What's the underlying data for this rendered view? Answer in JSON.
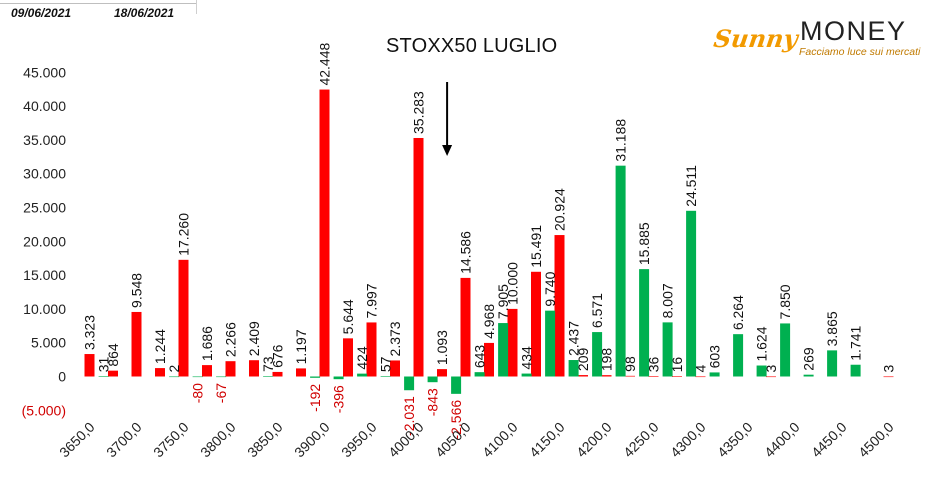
{
  "header": {
    "date_from": "09/06/2021",
    "date_to": "18/06/2021"
  },
  "logo": {
    "brand_a": "Sunny",
    "brand_b": "MONEY",
    "tagline": "Facciamo luce sui mercati"
  },
  "colors": {
    "call": "#ff0000",
    "put": "#00b050",
    "negative_label": "#d00000"
  },
  "chart_data": {
    "type": "bar",
    "title": "STOXX50 LUGLIO",
    "xlabel": "",
    "ylabel": "",
    "ylim": [
      -5000,
      45000
    ],
    "y_ticks": [
      45000,
      40000,
      35000,
      30000,
      25000,
      20000,
      15000,
      10000,
      5000,
      0,
      -5000
    ],
    "y_tick_labels": [
      "45.000",
      "40.000",
      "35.000",
      "30.000",
      "25.000",
      "20.000",
      "15.000",
      "10.000",
      "5.000",
      "0",
      "(5.000)"
    ],
    "categories": [
      "3650,0",
      "3700,0",
      "3750,0",
      "3800,0",
      "3850,0",
      "3900,0",
      "3950,0",
      "4000,0",
      "4050,0",
      "4100,0",
      "4150,0",
      "4200,0",
      "4250,0",
      "4300,0",
      "4350,0",
      "4400,0",
      "4450,0",
      "4500,0"
    ],
    "category_step": 25,
    "annotation": {
      "type": "arrow-down",
      "strike": 4040
    },
    "series": [
      {
        "values": [
          {
            "strike": 3650,
            "value": 3323,
            "label": "3.323"
          },
          {
            "strike": 3675,
            "value": 864,
            "label": "864"
          },
          {
            "strike": 3700,
            "value": 9548,
            "label": "9.548"
          },
          {
            "strike": 3725,
            "value": 1244,
            "label": "1.244"
          },
          {
            "strike": 3750,
            "value": 17260,
            "label": "17.260"
          },
          {
            "strike": 3775,
            "value": 1686,
            "label": "1.686"
          },
          {
            "strike": 3800,
            "value": 2266,
            "label": "2.266"
          },
          {
            "strike": 3825,
            "value": 2409,
            "label": "2.409"
          },
          {
            "strike": 3850,
            "value": 676,
            "label": "676"
          },
          {
            "strike": 3875,
            "value": 1197,
            "label": "1.197"
          },
          {
            "strike": 3900,
            "value": 42448,
            "label": "42.448"
          },
          {
            "strike": 3925,
            "value": 5644,
            "label": "5.644"
          },
          {
            "strike": 3950,
            "value": 7997,
            "label": "7.997"
          },
          {
            "strike": 3975,
            "value": 2373,
            "label": "2.373"
          },
          {
            "strike": 4000,
            "value": 35283,
            "label": "35.283"
          },
          {
            "strike": 4025,
            "value": 1093,
            "label": "1.093"
          },
          {
            "strike": 4050,
            "value": 14586,
            "label": "14.586"
          },
          {
            "strike": 4075,
            "value": 4968,
            "label": "4.968"
          },
          {
            "strike": 4100,
            "value": 10000,
            "label": "10.000"
          },
          {
            "strike": 4125,
            "value": 15491,
            "label": "15.491"
          },
          {
            "strike": 4150,
            "value": 20924,
            "label": "20.924"
          },
          {
            "strike": 4175,
            "value": 209,
            "label": "209"
          },
          {
            "strike": 4200,
            "value": 198,
            "label": "198"
          },
          {
            "strike": 4225,
            "value": 98,
            "label": "98"
          },
          {
            "strike": 4250,
            "value": 36,
            "label": "36"
          },
          {
            "strike": 4275,
            "value": 16,
            "label": "16"
          },
          {
            "strike": 4300,
            "value": 4,
            "label": "4"
          },
          {
            "strike": 4375,
            "value": 3,
            "label": "3"
          },
          {
            "strike": 4500,
            "value": 3,
            "label": "3"
          }
        ]
      },
      {
        "values": [
          {
            "strike": 3665,
            "value": 31,
            "label": "31"
          },
          {
            "strike": 3740,
            "value": 2,
            "label": "2"
          },
          {
            "strike": 3765,
            "value": -80,
            "label": "-80"
          },
          {
            "strike": 3790,
            "value": -67,
            "label": "-67"
          },
          {
            "strike": 3840,
            "value": 73,
            "label": "73"
          },
          {
            "strike": 3890,
            "value": -192,
            "label": "-192"
          },
          {
            "strike": 3915,
            "value": -396,
            "label": "-396"
          },
          {
            "strike": 3940,
            "value": 424,
            "label": "424"
          },
          {
            "strike": 3965,
            "value": 57,
            "label": "57"
          },
          {
            "strike": 3990,
            "value": -2031,
            "label": "-2.031"
          },
          {
            "strike": 4015,
            "value": -843,
            "label": "-843"
          },
          {
            "strike": 4040,
            "value": -2566,
            "label": "-2.566"
          },
          {
            "strike": 4065,
            "value": 643,
            "label": "643"
          },
          {
            "strike": 4090,
            "value": 7905,
            "label": "7.905"
          },
          {
            "strike": 4115,
            "value": 434,
            "label": "434"
          },
          {
            "strike": 4140,
            "value": 9740,
            "label": "9.740"
          },
          {
            "strike": 4165,
            "value": 2437,
            "label": "2.437"
          },
          {
            "strike": 4190,
            "value": 6571,
            "label": "6.571"
          },
          {
            "strike": 4215,
            "value": 31188,
            "label": "31.188"
          },
          {
            "strike": 4240,
            "value": 15885,
            "label": "15.885"
          },
          {
            "strike": 4265,
            "value": 8007,
            "label": "8.007"
          },
          {
            "strike": 4290,
            "value": 24511,
            "label": "24.511"
          },
          {
            "strike": 4315,
            "value": 603,
            "label": "603"
          },
          {
            "strike": 4340,
            "value": 6264,
            "label": "6.264"
          },
          {
            "strike": 4365,
            "value": 1624,
            "label": "1.624"
          },
          {
            "strike": 4390,
            "value": 7850,
            "label": "7.850"
          },
          {
            "strike": 4415,
            "value": 269,
            "label": "269"
          },
          {
            "strike": 4440,
            "value": 3865,
            "label": "3.865"
          },
          {
            "strike": 4465,
            "value": 1741,
            "label": "1.741"
          }
        ]
      }
    ]
  }
}
